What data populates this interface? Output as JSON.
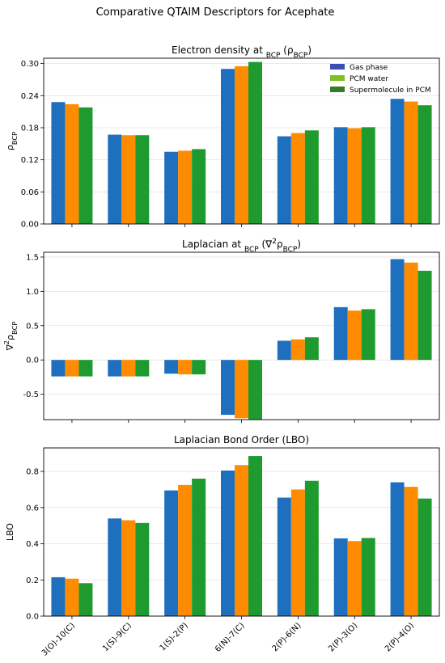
{
  "figure": {
    "title": "Comparative QTAIM Descriptors for Acephate"
  },
  "colors": {
    "Gas phase": "#1f6fbf",
    "PCM water": "#ff8c00",
    "Supermolecule in PCM": "#1e9a2e",
    "legend_gas": "#3a4fb5",
    "legend_pcm": "#7fbf1f",
    "legend_super": "#3a7a28"
  },
  "legend": {
    "placement": "top-right",
    "entries": [
      "Gas phase",
      "PCM water",
      "Supermolecule in PCM"
    ]
  },
  "chart_data": [
    {
      "type": "bar",
      "title": "Electron density at BCP (ρBCP)",
      "ylabel": "ρBCP",
      "xlabel": "",
      "categories": [
        "3(O)-10(C)",
        "1(S)-9(C)",
        "1(S)-2(P)",
        "6(N)-7(C)",
        "2(P)-6(N)",
        "2(P)-3(O)",
        "2(P)-4(O)"
      ],
      "ylim": [
        0,
        0.31
      ],
      "yticks": [
        "0.00",
        "0.06",
        "0.12",
        "0.18",
        "0.24",
        "0.30"
      ],
      "grid": true,
      "series": [
        {
          "name": "Gas phase",
          "values": [
            0.228,
            0.167,
            0.135,
            0.29,
            0.164,
            0.181,
            0.234
          ]
        },
        {
          "name": "PCM water",
          "values": [
            0.224,
            0.166,
            0.137,
            0.295,
            0.17,
            0.179,
            0.229
          ]
        },
        {
          "name": "Supermolecule in PCM",
          "values": [
            0.218,
            0.166,
            0.14,
            0.303,
            0.175,
            0.181,
            0.222
          ]
        }
      ]
    },
    {
      "type": "bar",
      "title": "Laplacian at BCP (∇²ρBCP)",
      "ylabel": "∇²ρBCP",
      "xlabel": "",
      "categories": [
        "3(O)-10(C)",
        "1(S)-9(C)",
        "1(S)-2(P)",
        "6(N)-7(C)",
        "2(P)-6(N)",
        "2(P)-3(O)",
        "2(P)-4(O)"
      ],
      "ylim": [
        -0.87,
        1.57
      ],
      "yticks": [
        "-0.5",
        "0.0",
        "0.5",
        "1.0",
        "1.5"
      ],
      "grid": true,
      "series": [
        {
          "name": "Gas phase",
          "values": [
            -0.24,
            -0.24,
            -0.2,
            -0.8,
            0.28,
            0.77,
            1.47
          ]
        },
        {
          "name": "PCM water",
          "values": [
            -0.24,
            -0.24,
            -0.21,
            -0.85,
            0.3,
            0.72,
            1.42
          ]
        },
        {
          "name": "Supermolecule in PCM",
          "values": [
            -0.24,
            -0.24,
            -0.21,
            -0.87,
            0.33,
            0.74,
            1.3
          ]
        }
      ]
    },
    {
      "type": "bar",
      "title": "Laplacian Bond Order (LBO)",
      "ylabel": "LBO",
      "xlabel": "",
      "categories": [
        "3(O)-10(C)",
        "1(S)-9(C)",
        "1(S)-2(P)",
        "6(N)-7(C)",
        "2(P)-6(N)",
        "2(P)-3(O)",
        "2(P)-4(O)"
      ],
      "ylim": [
        0,
        0.93
      ],
      "yticks": [
        "0.0",
        "0.2",
        "0.4",
        "0.6",
        "0.8"
      ],
      "grid": true,
      "series": [
        {
          "name": "Gas phase",
          "values": [
            0.215,
            0.54,
            0.695,
            0.805,
            0.655,
            0.43,
            0.74
          ]
        },
        {
          "name": "PCM water",
          "values": [
            0.207,
            0.53,
            0.725,
            0.835,
            0.7,
            0.415,
            0.715
          ]
        },
        {
          "name": "Supermolecule in PCM",
          "values": [
            0.182,
            0.515,
            0.76,
            0.885,
            0.748,
            0.432,
            0.65
          ]
        }
      ]
    }
  ]
}
